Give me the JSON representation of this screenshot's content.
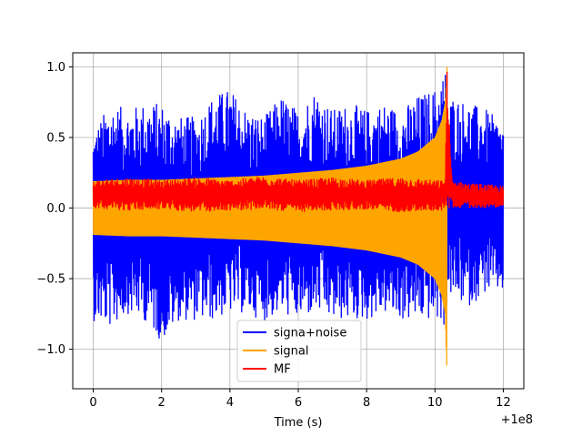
{
  "chart_data": {
    "type": "line",
    "title": "",
    "xlabel": "Time (s)",
    "ylabel": "",
    "x_offset_label": "+1e8",
    "x_offset_value": 100000000,
    "xlim": [
      -0.6,
      12.6
    ],
    "ylim": [
      -1.28,
      1.1
    ],
    "x_ticks": [
      {
        "value": 0,
        "label": "0"
      },
      {
        "value": 2,
        "label": "2"
      },
      {
        "value": 4,
        "label": "4"
      },
      {
        "value": 6,
        "label": "6"
      },
      {
        "value": 8,
        "label": "8"
      },
      {
        "value": 10,
        "label": "10"
      },
      {
        "value": 12,
        "label": "12"
      }
    ],
    "y_ticks": [
      {
        "value": 1.0,
        "label": "1.0"
      },
      {
        "value": 0.5,
        "label": "0.5"
      },
      {
        "value": 0.0,
        "label": "0.0"
      },
      {
        "value": -0.5,
        "label": "−0.5"
      },
      {
        "value": -1.0,
        "label": "−1.0"
      }
    ],
    "grid": true,
    "legend_position": "bottom-center",
    "series": [
      {
        "name": "signa+noise",
        "color": "#0000ff",
        "x": [
          0,
          0.5,
          1,
          1.5,
          2,
          2.5,
          3,
          3.5,
          4,
          4.5,
          5,
          5.5,
          6,
          6.5,
          7,
          7.5,
          8,
          8.5,
          9,
          9.5,
          10,
          10.3,
          10.35,
          10.4,
          10.5,
          11,
          11.5,
          12
        ],
        "upper": [
          0.55,
          0.75,
          0.7,
          0.75,
          0.75,
          0.65,
          0.65,
          0.8,
          0.85,
          0.7,
          0.65,
          0.8,
          0.7,
          0.85,
          0.7,
          0.75,
          0.7,
          0.75,
          0.7,
          0.8,
          0.85,
          1.0,
          0.8,
          0.75,
          0.8,
          0.75,
          0.7,
          0.6
        ],
        "lower": [
          -0.8,
          -0.85,
          -0.75,
          -0.8,
          -0.95,
          -0.8,
          -0.8,
          -0.8,
          -0.75,
          -0.75,
          -0.8,
          -0.75,
          -0.8,
          -0.75,
          -0.8,
          -0.8,
          -0.8,
          -0.75,
          -0.8,
          -0.8,
          -0.8,
          -0.85,
          -0.7,
          -0.6,
          -0.65,
          -0.7,
          -0.6,
          -0.6
        ]
      },
      {
        "name": "signal",
        "color": "#ffa500",
        "x": [
          0,
          1,
          2,
          3,
          4,
          5,
          6,
          7,
          8,
          9,
          9.5,
          10,
          10.2,
          10.3,
          10.35
        ],
        "upper": [
          0.19,
          0.2,
          0.2,
          0.21,
          0.22,
          0.23,
          0.25,
          0.27,
          0.3,
          0.35,
          0.4,
          0.5,
          0.62,
          0.75,
          1.0
        ],
        "lower": [
          -0.19,
          -0.2,
          -0.2,
          -0.21,
          -0.22,
          -0.23,
          -0.25,
          -0.27,
          -0.3,
          -0.35,
          -0.4,
          -0.5,
          -0.62,
          -0.75,
          -1.18
        ]
      },
      {
        "name": "MF",
        "color": "#ff0000",
        "x": [
          0,
          1,
          2,
          3,
          4,
          5,
          6,
          7,
          8,
          9,
          10,
          10.3,
          10.35,
          10.5,
          11,
          12
        ],
        "upper": [
          0.2,
          0.22,
          0.2,
          0.22,
          0.2,
          0.23,
          0.2,
          0.22,
          0.2,
          0.22,
          0.2,
          0.2,
          1.0,
          0.2,
          0.18,
          0.16
        ],
        "lower": [
          0.0,
          -0.02,
          -0.01,
          -0.03,
          -0.02,
          -0.01,
          -0.03,
          -0.02,
          -0.01,
          -0.03,
          -0.02,
          -0.02,
          -0.02,
          0.0,
          0.0,
          0.0
        ]
      }
    ]
  }
}
